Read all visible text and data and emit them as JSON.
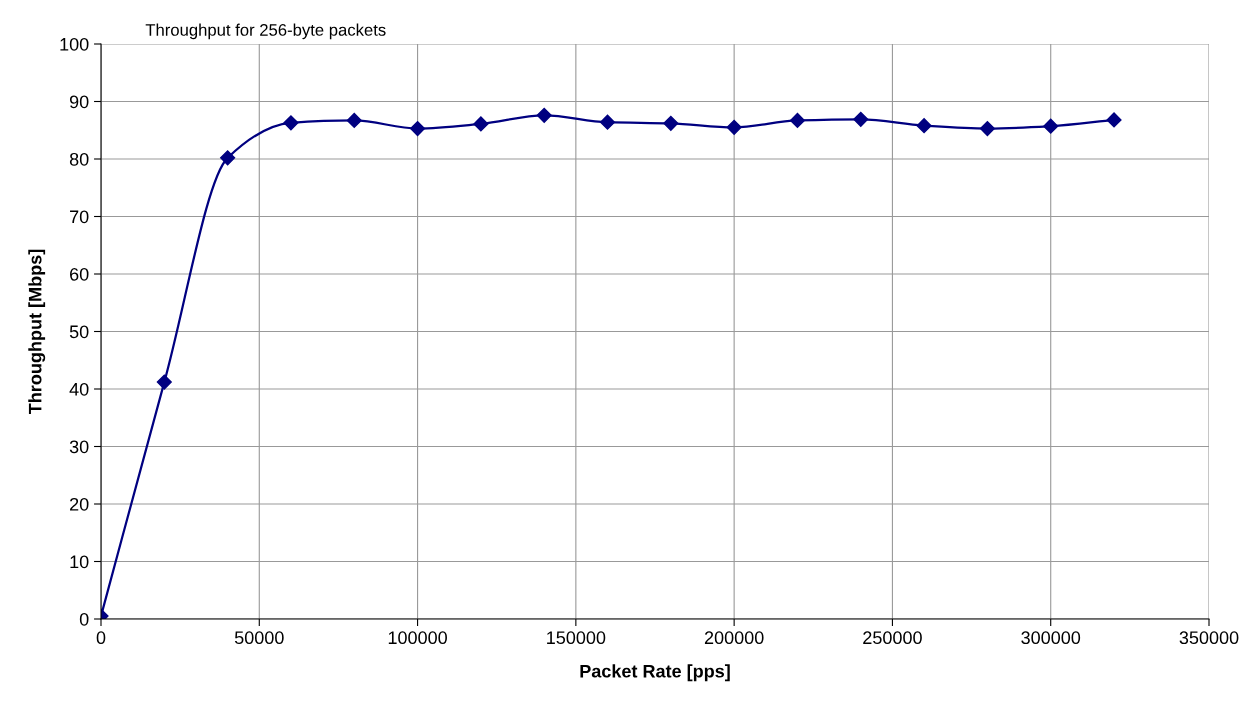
{
  "chart_data": {
    "type": "line",
    "title": "Throughput for 256-byte packets",
    "xlabel": "Packet Rate [pps]",
    "ylabel": "Throughput [Mbps]",
    "x": [
      0,
      20000,
      40000,
      60000,
      80000,
      100000,
      120000,
      140000,
      160000,
      180000,
      200000,
      220000,
      240000,
      260000,
      280000,
      300000,
      320000
    ],
    "series": [
      {
        "color": "#000080",
        "values": [
          0.5,
          41.2,
          80.2,
          86.3,
          86.7,
          85.3,
          86.1,
          87.6,
          86.4,
          86.2,
          85.5,
          86.7,
          86.9,
          85.8,
          85.3,
          85.7,
          86.8
        ]
      }
    ],
    "xlim": [
      0,
      350000
    ],
    "xticks": [
      0,
      50000,
      100000,
      150000,
      200000,
      250000,
      300000,
      350000
    ],
    "ylim": [
      0,
      100
    ],
    "yticks": [
      0,
      10,
      20,
      30,
      40,
      50,
      60,
      70,
      80,
      90,
      100
    ],
    "grid": true,
    "marker": "diamond",
    "line_style": "solid",
    "legend": false
  }
}
